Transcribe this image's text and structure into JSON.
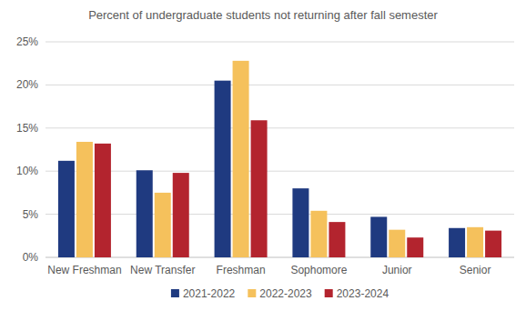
{
  "chart_data": {
    "type": "bar",
    "title": "Percent of undergraduate students not returning after fall semester",
    "categories": [
      "New Freshman",
      "New Transfer",
      "Freshman",
      "Sophomore",
      "Junior",
      "Senior"
    ],
    "series": [
      {
        "name": "2021-2022",
        "color": "#1f3a80",
        "values": [
          11.2,
          10.1,
          20.5,
          8.0,
          4.7,
          3.4
        ]
      },
      {
        "name": "2022-2023",
        "color": "#f5c15c",
        "values": [
          13.4,
          7.5,
          22.8,
          5.4,
          3.2,
          3.5
        ]
      },
      {
        "name": "2023-2024",
        "color": "#b3242e",
        "values": [
          13.2,
          9.8,
          15.9,
          4.1,
          2.3,
          3.1
        ]
      }
    ],
    "ylim": [
      0,
      25
    ],
    "yticks": [
      {
        "value": 0,
        "label": "0%"
      },
      {
        "value": 5,
        "label": "5%"
      },
      {
        "value": 10,
        "label": "10%"
      },
      {
        "value": 15,
        "label": "15%"
      },
      {
        "value": 20,
        "label": "20%"
      },
      {
        "value": 25,
        "label": "25%"
      }
    ],
    "grid": true,
    "legend": "bottom"
  }
}
